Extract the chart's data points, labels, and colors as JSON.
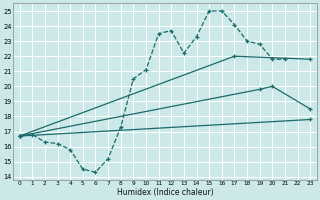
{
  "xlabel": "Humidex (Indice chaleur)",
  "xlim": [
    -0.5,
    23.5
  ],
  "ylim": [
    13.8,
    25.5
  ],
  "yticks": [
    14,
    15,
    16,
    17,
    18,
    19,
    20,
    21,
    22,
    23,
    24,
    25
  ],
  "xticks": [
    0,
    1,
    2,
    3,
    4,
    5,
    6,
    7,
    8,
    9,
    10,
    11,
    12,
    13,
    14,
    15,
    16,
    17,
    18,
    19,
    20,
    21,
    22,
    23
  ],
  "bg_color": "#cce8e8",
  "grid_color": "#b8d8d8",
  "line_color": "#1a6b6b",
  "line1_x": [
    0,
    1,
    2,
    3,
    4,
    5,
    6,
    7,
    8,
    9,
    10,
    11,
    12,
    13,
    14,
    15,
    16,
    17,
    18,
    19,
    20,
    21
  ],
  "line1_y": [
    16.7,
    16.8,
    16.3,
    16.2,
    15.8,
    14.5,
    14.3,
    15.2,
    17.3,
    20.5,
    21.1,
    23.5,
    23.7,
    22.2,
    23.3,
    25.0,
    25.0,
    24.1,
    23.0,
    22.8,
    21.8,
    21.8
  ],
  "line2_x": [
    0,
    17,
    23
  ],
  "line2_y": [
    16.7,
    22.0,
    21.8
  ],
  "line3_x": [
    0,
    19,
    20,
    23
  ],
  "line3_y": [
    16.7,
    19.8,
    20.0,
    18.5
  ],
  "line4_x": [
    0,
    23
  ],
  "line4_y": [
    16.7,
    17.8
  ]
}
